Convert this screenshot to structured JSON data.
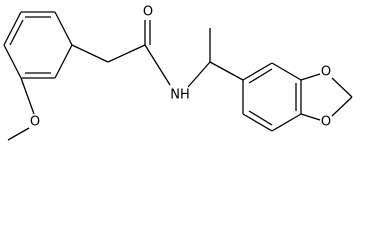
{
  "atoms": {
    "carbonyl_oxygen": "O",
    "amide_nitrogen": "NH",
    "methoxy_oxygen": "O",
    "dioxole_oxygen_top": "O",
    "dioxole_oxygen_bottom": "O"
  }
}
